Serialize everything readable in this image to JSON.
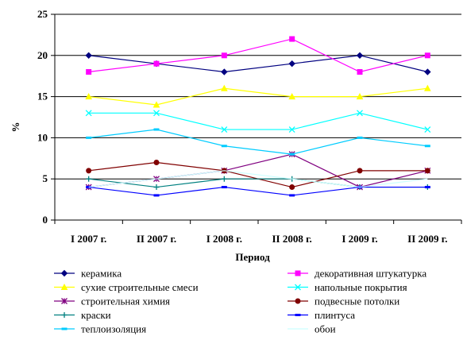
{
  "chart_data": {
    "type": "line",
    "title": "",
    "xlabel": "Период",
    "ylabel": "%",
    "ylim": [
      0,
      25
    ],
    "ytick_step": 5,
    "grid": "horizontal",
    "legend_position": "bottom",
    "categories": [
      "I  2007 г.",
      "II  2007 г.",
      "I  2008 г.",
      "II  2008 г.",
      "I  2009 г.",
      "II  2009 г."
    ],
    "series": [
      {
        "name": "керамика",
        "values": [
          20,
          19,
          18,
          19,
          20,
          18
        ],
        "color": "#000080",
        "marker": "diamond"
      },
      {
        "name": "декоративная штукатурка",
        "values": [
          18,
          19,
          20,
          22,
          18,
          20
        ],
        "color": "#FF00FF",
        "marker": "square"
      },
      {
        "name": "сухие строительные смеси",
        "values": [
          15,
          14,
          16,
          15,
          15,
          16
        ],
        "color": "#FFFF00",
        "marker": "triangle"
      },
      {
        "name": "напольные покрытия",
        "values": [
          13,
          13,
          11,
          11,
          13,
          11
        ],
        "color": "#00FFFF",
        "marker": "x"
      },
      {
        "name": "строительная химия",
        "values": [
          4,
          5,
          6,
          8,
          4,
          6
        ],
        "color": "#800080",
        "marker": "star"
      },
      {
        "name": "подвесные потолки",
        "values": [
          6,
          7,
          6,
          4,
          6,
          6
        ],
        "color": "#800000",
        "marker": "circle"
      },
      {
        "name": "краски",
        "values": [
          5,
          4,
          5,
          5,
          4,
          4
        ],
        "color": "#008080",
        "marker": "plus"
      },
      {
        "name": "плинтуса",
        "values": [
          4,
          3,
          4,
          3,
          4,
          4
        ],
        "color": "#0000FF",
        "marker": "dash"
      },
      {
        "name": "теплоизоляция",
        "values": [
          10,
          11,
          9,
          8,
          10,
          9
        ],
        "color": "#00CCFF",
        "marker": "dash"
      },
      {
        "name": "обои",
        "values": [
          4,
          5,
          6,
          5,
          4,
          5
        ],
        "color": "#CCFFFF",
        "marker": "none"
      }
    ]
  }
}
